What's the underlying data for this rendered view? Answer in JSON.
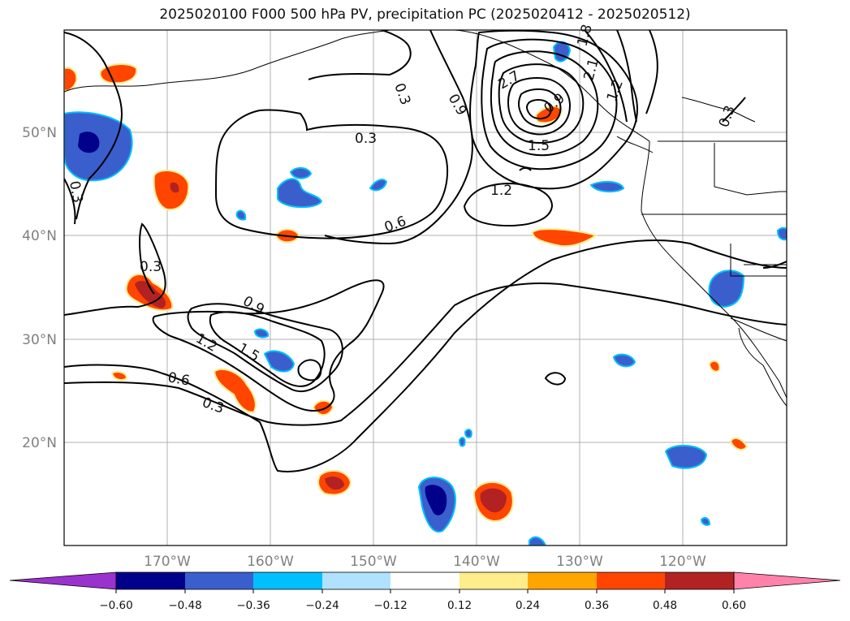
{
  "title": "2025020100 F000 500 hPa PV, precipitation PC (2025020412 - 2025020512)",
  "map": {
    "lat_labels": [
      "50°N",
      "40°N",
      "30°N",
      "20°N"
    ],
    "lon_labels": [
      "170°W",
      "160°W",
      "150°W",
      "140°W",
      "130°W",
      "120°W"
    ],
    "contour_labels": [
      "0.3",
      "0.3",
      "0.3",
      "0.3",
      "0.3",
      "0.3",
      "0.6",
      "0.6",
      "0.9",
      "0.9",
      "1.2",
      "1.2",
      "1.2",
      "1.5",
      "1.5",
      "1.8",
      "2.1",
      "2.7",
      "0.9"
    ]
  },
  "colorbar": {
    "ticks": [
      "−0.60",
      "−0.48",
      "−0.36",
      "−0.24",
      "−0.12",
      "0.12",
      "0.24",
      "0.36",
      "0.48",
      "0.60"
    ],
    "colors": [
      "#9a32cd",
      "#00008b",
      "#3a5fcd",
      "#00bfff",
      "#b0e2ff",
      "#ffffff",
      "#ffec8b",
      "#ffa500",
      "#ff4500",
      "#b22222",
      "#ff82ab"
    ]
  }
}
